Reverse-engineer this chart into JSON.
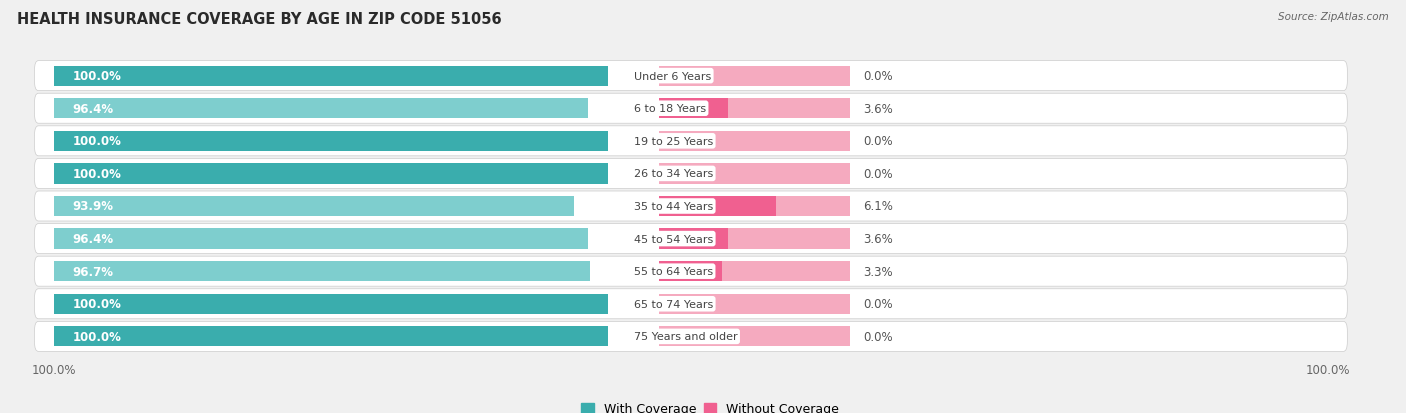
{
  "title": "HEALTH INSURANCE COVERAGE BY AGE IN ZIP CODE 51056",
  "source": "Source: ZipAtlas.com",
  "categories": [
    "Under 6 Years",
    "6 to 18 Years",
    "19 to 25 Years",
    "26 to 34 Years",
    "35 to 44 Years",
    "45 to 54 Years",
    "55 to 64 Years",
    "65 to 74 Years",
    "75 Years and older"
  ],
  "with_coverage": [
    100.0,
    96.4,
    100.0,
    100.0,
    93.9,
    96.4,
    96.7,
    100.0,
    100.0
  ],
  "without_coverage": [
    0.0,
    3.6,
    0.0,
    0.0,
    6.1,
    3.6,
    3.3,
    0.0,
    0.0
  ],
  "color_with_dark": "#3AADAD",
  "color_with_light": "#7ECECE",
  "color_without_dark": "#F06090",
  "color_without_light": "#F5AABF",
  "bg_color": "#f0f0f0",
  "row_bg": "#ffffff",
  "title_fontsize": 10.5,
  "label_fontsize": 8.5,
  "tick_fontsize": 8.5,
  "legend_fontsize": 9,
  "source_fontsize": 7.5
}
